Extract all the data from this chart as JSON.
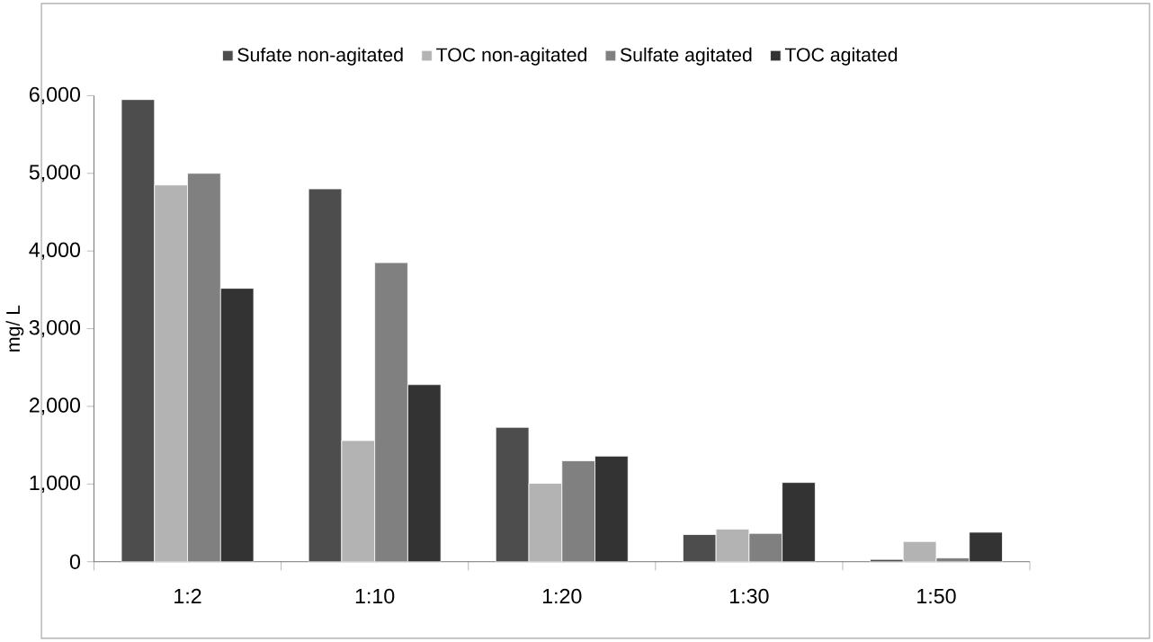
{
  "chart_data": {
    "type": "bar",
    "ylabel": "mg/ L",
    "categories": [
      "1:2",
      "1:10",
      "1:20",
      "1:30",
      "1:50"
    ],
    "series": [
      {
        "name": "Sufate non-agitated",
        "color": "#4d4d4d",
        "values": [
          5950,
          4800,
          1730,
          350,
          30
        ]
      },
      {
        "name": "TOC non-agitated",
        "color": "#b3b3b3",
        "values": [
          4850,
          1560,
          1010,
          420,
          260
        ]
      },
      {
        "name": "Sulfate agitated",
        "color": "#808080",
        "values": [
          5000,
          3850,
          1300,
          365,
          50
        ]
      },
      {
        "name": "TOC agitated",
        "color": "#333333",
        "values": [
          3520,
          2280,
          1360,
          1020,
          380
        ]
      }
    ],
    "ylim": [
      0,
      6000
    ],
    "yticks": [
      0,
      {
        "value": 1000,
        "label": "1,000"
      },
      {
        "value": 2000,
        "label": "2,000"
      },
      {
        "value": 3000,
        "label": "3,000"
      },
      {
        "value": 4000,
        "label": "4,000"
      },
      {
        "value": 5000,
        "label": "5,000"
      },
      {
        "value": 6000,
        "label": "6,000"
      }
    ],
    "legend": "top"
  }
}
